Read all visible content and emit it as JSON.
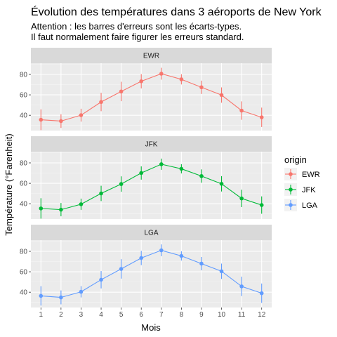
{
  "chart_data": {
    "type": "line",
    "title": "Évolution des températures dans 3 aéroports de New York",
    "subtitle_lines": [
      "Attention : les barres d'erreurs sont les écarts-types.",
      "Il faut normalement faire figurer les erreurs standard."
    ],
    "xlabel": "Mois",
    "ylabel": "Température (°Farenheit)",
    "x": [
      1,
      2,
      3,
      4,
      5,
      6,
      7,
      8,
      9,
      10,
      11,
      12
    ],
    "xlim": [
      0.5,
      12.5
    ],
    "ylim": [
      25,
      91
    ],
    "yticks": [
      40,
      60,
      80
    ],
    "grid": true,
    "legend": {
      "title": "origin",
      "position": "right"
    },
    "series": [
      {
        "name": "EWR",
        "color": "#F8766D",
        "values": [
          35.6,
          34.3,
          40.1,
          53.0,
          63.3,
          73.3,
          80.7,
          75.2,
          67.4,
          59.8,
          44.6,
          38.0
        ],
        "sd": [
          10.2,
          6.7,
          6.3,
          9.0,
          9.5,
          7.0,
          5.8,
          5.0,
          6.5,
          7.5,
          9.0,
          9.5
        ]
      },
      {
        "name": "JFK",
        "color": "#00BA38",
        "values": [
          35.4,
          34.2,
          39.5,
          50.1,
          59.3,
          70.1,
          78.7,
          74.2,
          67.1,
          59.5,
          45.2,
          38.7
        ],
        "sd": [
          10.0,
          6.5,
          5.5,
          7.5,
          7.5,
          6.5,
          5.5,
          4.5,
          6.5,
          7.5,
          8.5,
          8.5
        ]
      },
      {
        "name": "LGA",
        "color": "#619CFF",
        "values": [
          36.4,
          34.9,
          40.4,
          52.2,
          62.8,
          73.5,
          81.0,
          75.5,
          68.0,
          60.5,
          45.7,
          39.0
        ],
        "sd": [
          9.5,
          6.8,
          5.5,
          8.5,
          9.5,
          7.0,
          5.8,
          4.5,
          6.5,
          7.5,
          9.5,
          9.5
        ]
      }
    ]
  }
}
